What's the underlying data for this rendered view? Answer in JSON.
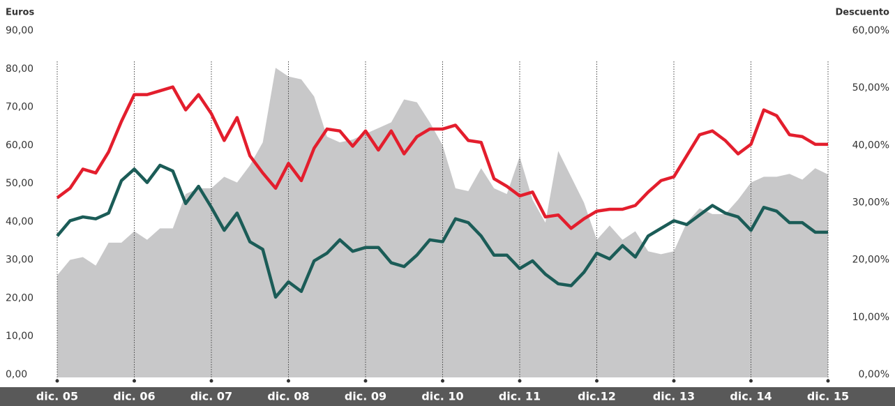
{
  "chart_data": {
    "type": "line",
    "y_label": "Euros",
    "y2_label": "Descuento",
    "categories": [
      "dic. 05",
      null,
      null,
      null,
      null,
      null,
      "dic. 06",
      null,
      null,
      null,
      null,
      null,
      "dic. 07",
      null,
      null,
      null,
      null,
      null,
      "dic. 08",
      null,
      null,
      null,
      null,
      null,
      "dic. 09",
      null,
      null,
      null,
      null,
      null,
      "dic. 10",
      null,
      null,
      null,
      null,
      null,
      "dic. 11",
      null,
      null,
      null,
      null,
      null,
      "dic.12",
      null,
      null,
      null,
      null,
      null,
      "dic. 13",
      null,
      null,
      null,
      null,
      null,
      "dic. 14",
      null,
      null,
      null,
      null,
      null,
      "dic. 15"
    ],
    "ylim": [
      0,
      90
    ],
    "yticks": [
      {
        "value": 0,
        "label": "0,00"
      },
      {
        "value": 10,
        "label": "10,00"
      },
      {
        "value": 20,
        "label": "20,00"
      },
      {
        "value": 30,
        "label": "30,00"
      },
      {
        "value": 40,
        "label": "40,00"
      },
      {
        "value": 50,
        "label": "50,00"
      },
      {
        "value": 60,
        "label": "60,00"
      },
      {
        "value": 70,
        "label": "70,00"
      },
      {
        "value": 80,
        "label": "80,00"
      },
      {
        "value": 90,
        "label": "90,00"
      }
    ],
    "y2lim": [
      0,
      60
    ],
    "y2ticks": [
      {
        "value": 0,
        "label": "0,00%"
      },
      {
        "value": 10,
        "label": "10,00%"
      },
      {
        "value": 20,
        "label": "20,00%"
      },
      {
        "value": 30,
        "label": "30,00%"
      },
      {
        "value": 40,
        "label": "40,00%"
      },
      {
        "value": 50,
        "label": "50,00%"
      },
      {
        "value": 60,
        "label": "60,00%"
      }
    ],
    "series": [
      {
        "type": "area",
        "axis": "y2",
        "color": "#c8c8c9",
        "values": [
          17.8,
          20.5,
          21,
          19.5,
          23.5,
          23.5,
          25.5,
          24,
          26,
          26,
          32,
          33,
          33,
          35,
          34,
          37,
          41,
          54,
          52.5,
          52,
          49,
          42,
          41,
          41.5,
          42.5,
          43.5,
          44.5,
          48.5,
          48,
          44.5,
          40.5,
          33,
          32.5,
          36.5,
          33,
          32,
          38.5,
          31,
          27,
          39.5,
          35,
          30.5,
          24,
          26.5,
          24,
          25.5,
          22,
          21.5,
          22,
          27,
          29.5,
          28.5,
          28.5,
          31,
          34,
          35,
          35,
          35.5,
          34.5,
          36.5,
          35.4
        ]
      },
      {
        "type": "line",
        "color": "#e31e2d",
        "values": [
          47,
          49.5,
          54.5,
          53.5,
          59,
          67,
          74,
          74,
          75,
          76,
          70,
          74,
          69,
          62,
          68,
          58,
          53.5,
          49.5,
          56,
          51.5,
          60,
          65,
          64.5,
          60.5,
          64.5,
          59.5,
          64.5,
          58.5,
          63,
          65,
          65,
          66,
          62,
          61.5,
          52,
          50,
          47.5,
          48.5,
          42,
          42.5,
          39,
          41.5,
          43.5,
          44,
          44,
          45,
          48.5,
          51.5,
          52.5,
          58,
          63.5,
          64.5,
          62,
          58.5,
          61,
          70,
          68.5,
          63.5,
          63,
          61,
          61
        ]
      },
      {
        "type": "line",
        "color": "#1b5c57",
        "values": [
          37,
          41,
          42,
          41.5,
          43,
          51.5,
          54.5,
          51,
          55.5,
          54,
          45.5,
          50,
          44.5,
          38.5,
          43,
          35.5,
          33.5,
          21,
          25,
          22.5,
          30.5,
          32.5,
          36,
          33,
          34,
          34,
          30,
          29,
          32,
          36,
          35.5,
          41.5,
          40.5,
          37,
          32,
          32,
          28.5,
          30.5,
          27,
          24.5,
          24,
          27.5,
          32.5,
          31,
          34.5,
          31.5,
          37,
          39,
          41,
          40,
          42.5,
          45,
          43,
          42,
          38.5,
          44.5,
          43.5,
          40.5,
          40.5,
          38,
          38
        ]
      }
    ]
  }
}
